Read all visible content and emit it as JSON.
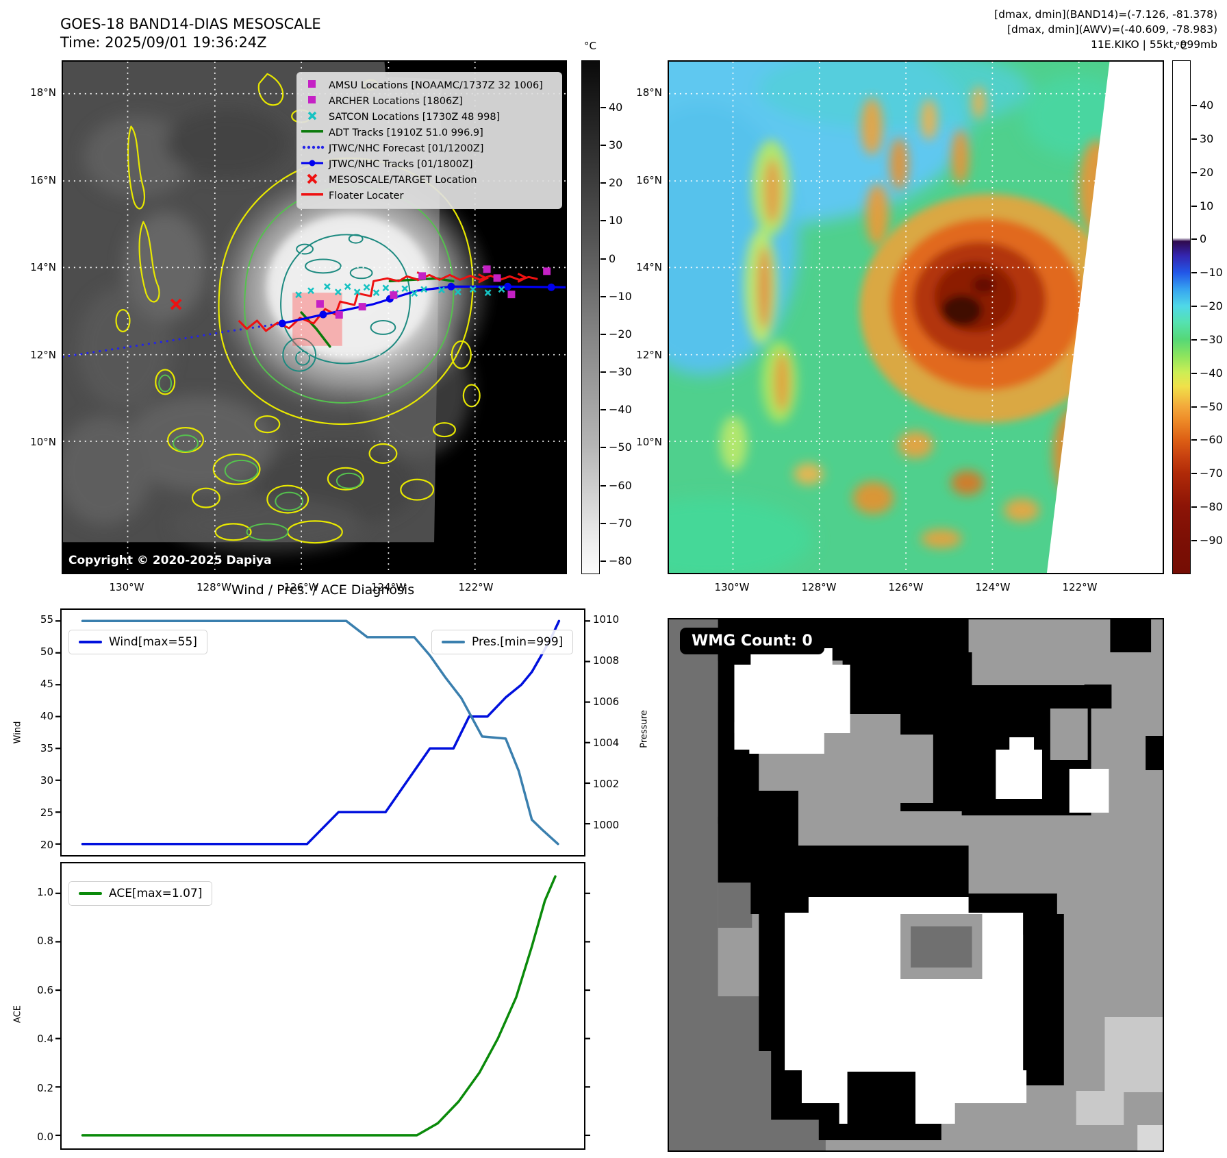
{
  "header": {
    "title_line1": "GOES-18 BAND14-DIAS MESOSCALE",
    "title_line2": "Time: 2025/09/01 19:36:24Z",
    "right_line1": "[dmax, dmin](BAND14)=(-7.126, -81.378)",
    "right_line2": "[dmax, dmin](AWV)=(-40.609, -78.983)",
    "right_line3": "11E.KIKO | 55kt, 999mb"
  },
  "left_map": {
    "legend_items": [
      {
        "marker": "square",
        "color": "#c521c5",
        "label": "AMSU Locations [NOAAMC/1737Z 32 1006]"
      },
      {
        "marker": "square",
        "color": "#c521c5",
        "label": "ARCHER Locations [1806Z]"
      },
      {
        "marker": "x",
        "color": "#16c2c2",
        "label": "SATCON Locations [1730Z 48 998]"
      },
      {
        "marker": "line",
        "color": "#0b7a0b",
        "label": "ADT Tracks [1910Z 51.0 996.9]"
      },
      {
        "marker": "dotted",
        "color": "#2323e8",
        "label": "JTWC/NHC Forecast [01/1200Z]"
      },
      {
        "marker": "line-dot",
        "color": "#0000ee",
        "label": "JTWC/NHC Tracks [01/1800Z]"
      },
      {
        "marker": "x",
        "color": "#ee1111",
        "label": "MESOSCALE/TARGET Location"
      },
      {
        "marker": "line",
        "color": "#ee1111",
        "label": "Floater Locater"
      }
    ],
    "copyright": "Copyright © 2020-2025 Dapiya",
    "lat_ticks": [
      "18°N",
      "16°N",
      "14°N",
      "12°N",
      "10°N"
    ],
    "lon_ticks": [
      "130°W",
      "128°W",
      "126°W",
      "124°W",
      "122°W"
    ],
    "colorbar_unit": "°C",
    "colorbar_ticks": [
      "40",
      "30",
      "20",
      "10",
      "0",
      "−10",
      "−20",
      "−30",
      "−40",
      "−50",
      "−60",
      "−70",
      "−80"
    ]
  },
  "right_map": {
    "lat_ticks": [
      "18°N",
      "16°N",
      "14°N",
      "12°N",
      "10°N"
    ],
    "lon_ticks": [
      "130°W",
      "128°W",
      "126°W",
      "124°W",
      "122°W"
    ],
    "colorbar_unit": "°C",
    "colorbar_ticks": [
      "40",
      "30",
      "20",
      "10",
      "0",
      "−10",
      "−20",
      "−30",
      "−40",
      "−50",
      "−60",
      "−70",
      "−80",
      "−90"
    ]
  },
  "wmg": {
    "label": "WMG Count: 0"
  },
  "chart_data": [
    {
      "type": "line",
      "title": "Wind / Pres. / ACE Diagnosis",
      "ylabel_left": "Wind",
      "ylabel_right": "Pressure",
      "ylim_left": [
        18.25,
        56.75
      ],
      "ylim_right": [
        998.45,
        1010.55
      ],
      "yticks_left": [
        "55",
        "50",
        "45",
        "40",
        "35",
        "30",
        "25",
        "20"
      ],
      "yticks_right": [
        "1010",
        "1008",
        "1006",
        "1004",
        "1002",
        "1000"
      ],
      "xlabel": "",
      "grid": false,
      "series": [
        {
          "name": "Wind[max=55]",
          "axis": "left",
          "color": "#0010dd",
          "x": [
            0.04,
            0.47,
            0.53,
            0.62,
            0.705,
            0.75,
            0.78,
            0.815,
            0.85,
            0.88,
            0.9,
            0.935,
            0.952
          ],
          "y": [
            20,
            20,
            25,
            25,
            35,
            35,
            40,
            40,
            43,
            45,
            47,
            52,
            55
          ]
        },
        {
          "name": "Pres.[min=999]",
          "axis": "right",
          "color": "#3a7fae",
          "x": [
            0.04,
            0.545,
            0.585,
            0.675,
            0.705,
            0.735,
            0.765,
            0.805,
            0.85,
            0.875,
            0.9,
            0.92,
            0.95
          ],
          "y": [
            1010,
            1010,
            1009.2,
            1009.2,
            1008.3,
            1007.2,
            1006.2,
            1004.3,
            1004.2,
            1002.6,
            1000.2,
            999.7,
            999.0
          ]
        }
      ]
    },
    {
      "type": "line",
      "title": "",
      "ylabel_left": "ACE",
      "ylim_left": [
        -0.054,
        1.124
      ],
      "yticks_left": [
        "1.0",
        "0.8",
        "0.6",
        "0.4",
        "0.2",
        "0.0"
      ],
      "xlabel": "",
      "grid": false,
      "series": [
        {
          "name": "ACE[max=1.07]",
          "axis": "left",
          "color": "#0a8a0a",
          "x": [
            0.04,
            0.68,
            0.72,
            0.76,
            0.8,
            0.835,
            0.87,
            0.9,
            0.925,
            0.945
          ],
          "y": [
            0.0,
            0.0,
            0.05,
            0.14,
            0.26,
            0.4,
            0.57,
            0.78,
            0.97,
            1.07
          ]
        }
      ]
    }
  ]
}
